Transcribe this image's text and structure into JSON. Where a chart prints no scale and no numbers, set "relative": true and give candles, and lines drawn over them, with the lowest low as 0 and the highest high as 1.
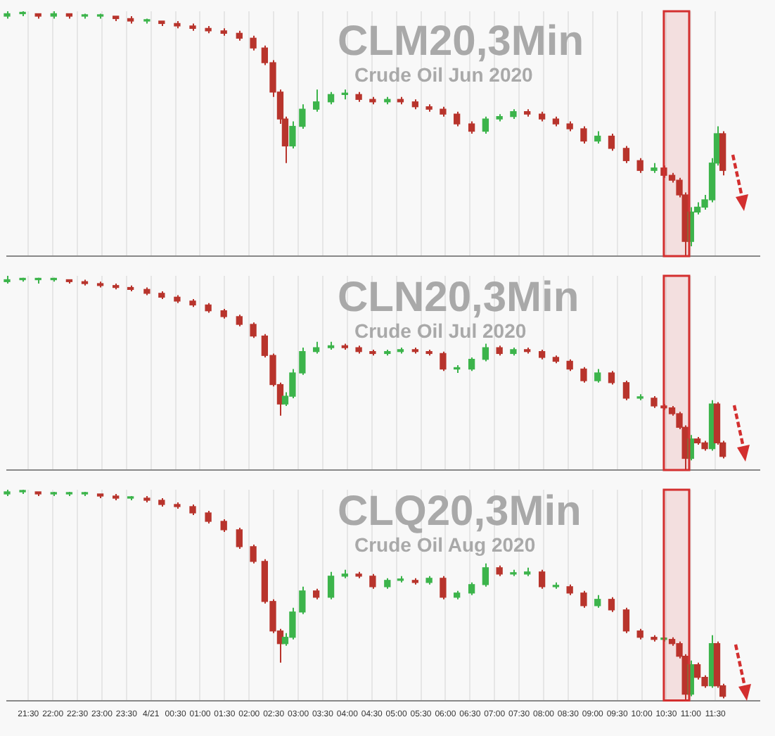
{
  "chart_data": [
    {
      "type": "candlestick",
      "title": "CLM20,3Min",
      "subtitle": "Crude Oil Jun 2020",
      "relative": true,
      "grid": "x",
      "tick_labels": false,
      "xlim": [
        "2020-04-20T21:04",
        "2020-04-21T12:24"
      ],
      "xticks": [
        {
          "value": "2020-04-20T21:30",
          "label": null
        },
        {
          "value": "2020-04-20T22:00",
          "label": null
        },
        {
          "value": "2020-04-20T22:30",
          "label": null
        },
        {
          "value": "2020-04-20T23:00",
          "label": null
        },
        {
          "value": "2020-04-20T23:30",
          "label": null
        },
        {
          "value": "2020-04-21T00:00",
          "label": null
        },
        {
          "value": "2020-04-21T00:30",
          "label": null
        },
        {
          "value": "2020-04-21T01:00",
          "label": null
        },
        {
          "value": "2020-04-21T01:30",
          "label": null
        },
        {
          "value": "2020-04-21T02:00",
          "label": null
        },
        {
          "value": "2020-04-21T02:30",
          "label": null
        },
        {
          "value": "2020-04-21T03:00",
          "label": null
        },
        {
          "value": "2020-04-21T03:30",
          "label": null
        },
        {
          "value": "2020-04-21T04:00",
          "label": null
        },
        {
          "value": "2020-04-21T04:30",
          "label": null
        },
        {
          "value": "2020-04-21T05:00",
          "label": null
        },
        {
          "value": "2020-04-21T05:30",
          "label": null
        },
        {
          "value": "2020-04-21T06:00",
          "label": null
        },
        {
          "value": "2020-04-21T06:30",
          "label": null
        },
        {
          "value": "2020-04-21T07:00",
          "label": null
        },
        {
          "value": "2020-04-21T07:30",
          "label": null
        },
        {
          "value": "2020-04-21T08:00",
          "label": null
        },
        {
          "value": "2020-04-21T08:30",
          "label": null
        },
        {
          "value": "2020-04-21T09:00",
          "label": null
        },
        {
          "value": "2020-04-21T09:30",
          "label": null
        },
        {
          "value": "2020-04-21T10:00",
          "label": null
        },
        {
          "value": "2020-04-21T10:30",
          "label": null
        },
        {
          "value": "2020-04-21T11:00",
          "label": null
        },
        {
          "value": "2020-04-21T11:30",
          "label": null
        }
      ],
      "bands": [
        {
          "axis": "x",
          "from": "2020-04-21T10:27",
          "to": "2020-04-21T10:58",
          "color": "#d32f2f"
        }
      ],
      "x": [
        "2020-04-20T21:04",
        "2020-04-20T21:23",
        "2020-04-20T21:42",
        "2020-04-20T22:01",
        "2020-04-20T22:20",
        "2020-04-20T22:39",
        "2020-04-20T22:58",
        "2020-04-20T23:17",
        "2020-04-20T23:35",
        "2020-04-20T23:55",
        "2020-04-21T00:13",
        "2020-04-21T00:32",
        "2020-04-21T00:51",
        "2020-04-21T01:10",
        "2020-04-21T01:29",
        "2020-04-21T01:48",
        "2020-04-21T02:05",
        "2020-04-21T02:19",
        "2020-04-21T02:29",
        "2020-04-21T02:38",
        "2020-04-21T02:44",
        "2020-04-21T02:53",
        "2020-04-21T03:05",
        "2020-04-21T03:22",
        "2020-04-21T03:40",
        "2020-04-21T03:57",
        "2020-04-21T04:14",
        "2020-04-21T04:31",
        "2020-04-21T04:49",
        "2020-04-21T05:05",
        "2020-04-21T05:23",
        "2020-04-21T05:40",
        "2020-04-21T05:57",
        "2020-04-21T06:14",
        "2020-04-21T06:32",
        "2020-04-21T06:49",
        "2020-04-21T07:06",
        "2020-04-21T07:23",
        "2020-04-21T07:40",
        "2020-04-21T07:58",
        "2020-04-21T08:15",
        "2020-04-21T08:32",
        "2020-04-21T08:49",
        "2020-04-21T09:06",
        "2020-04-21T09:23",
        "2020-04-21T09:41",
        "2020-04-21T09:58",
        "2020-04-21T10:15",
        "2020-04-21T10:27",
        "2020-04-21T10:37",
        "2020-04-21T10:46",
        "2020-04-21T10:53",
        "2020-04-21T11:00",
        "2020-04-21T11:08",
        "2020-04-21T11:17",
        "2020-04-21T11:26",
        "2020-04-21T11:32",
        "2020-04-21T11:39"
      ],
      "ohlc": [
        [
          0.98,
          1.0,
          0.97,
          0.99
        ],
        [
          0.99,
          1.0,
          0.98,
          0.99
        ],
        [
          0.99,
          0.99,
          0.97,
          0.98
        ],
        [
          0.98,
          1.0,
          0.97,
          0.99
        ],
        [
          0.99,
          0.99,
          0.97,
          0.98
        ],
        [
          0.98,
          0.99,
          0.97,
          0.98
        ],
        [
          0.98,
          0.99,
          0.97,
          0.98
        ],
        [
          0.98,
          0.98,
          0.96,
          0.97
        ],
        [
          0.97,
          0.98,
          0.95,
          0.96
        ],
        [
          0.96,
          0.97,
          0.95,
          0.96
        ],
        [
          0.96,
          0.96,
          0.94,
          0.95
        ],
        [
          0.95,
          0.96,
          0.93,
          0.94
        ],
        [
          0.94,
          0.95,
          0.92,
          0.93
        ],
        [
          0.93,
          0.94,
          0.91,
          0.92
        ],
        [
          0.92,
          0.93,
          0.9,
          0.91
        ],
        [
          0.91,
          0.92,
          0.88,
          0.89
        ],
        [
          0.89,
          0.9,
          0.84,
          0.85
        ],
        [
          0.85,
          0.86,
          0.78,
          0.79
        ],
        [
          0.79,
          0.8,
          0.65,
          0.67
        ],
        [
          0.67,
          0.68,
          0.54,
          0.56
        ],
        [
          0.56,
          0.57,
          0.38,
          0.45
        ],
        [
          0.45,
          0.55,
          0.44,
          0.53
        ],
        [
          0.53,
          0.62,
          0.52,
          0.6
        ],
        [
          0.6,
          0.68,
          0.59,
          0.63
        ],
        [
          0.63,
          0.67,
          0.62,
          0.66
        ],
        [
          0.66,
          0.68,
          0.64,
          0.66
        ],
        [
          0.66,
          0.67,
          0.63,
          0.64
        ],
        [
          0.64,
          0.65,
          0.62,
          0.63
        ],
        [
          0.63,
          0.65,
          0.62,
          0.64
        ],
        [
          0.64,
          0.65,
          0.62,
          0.63
        ],
        [
          0.63,
          0.64,
          0.6,
          0.61
        ],
        [
          0.61,
          0.62,
          0.59,
          0.6
        ],
        [
          0.6,
          0.61,
          0.57,
          0.58
        ],
        [
          0.58,
          0.59,
          0.53,
          0.54
        ],
        [
          0.54,
          0.55,
          0.5,
          0.51
        ],
        [
          0.51,
          0.57,
          0.5,
          0.56
        ],
        [
          0.56,
          0.58,
          0.55,
          0.57
        ],
        [
          0.57,
          0.6,
          0.56,
          0.59
        ],
        [
          0.59,
          0.6,
          0.57,
          0.58
        ],
        [
          0.58,
          0.59,
          0.55,
          0.56
        ],
        [
          0.56,
          0.57,
          0.53,
          0.54
        ],
        [
          0.54,
          0.55,
          0.51,
          0.52
        ],
        [
          0.52,
          0.53,
          0.46,
          0.47
        ],
        [
          0.47,
          0.51,
          0.46,
          0.49
        ],
        [
          0.49,
          0.5,
          0.43,
          0.44
        ],
        [
          0.44,
          0.45,
          0.38,
          0.39
        ],
        [
          0.39,
          0.4,
          0.34,
          0.35
        ],
        [
          0.35,
          0.38,
          0.34,
          0.36
        ],
        [
          0.36,
          0.37,
          0.32,
          0.33
        ],
        [
          0.33,
          0.34,
          0.3,
          0.31
        ],
        [
          0.31,
          0.32,
          0.24,
          0.25
        ],
        [
          0.25,
          0.26,
          0.0,
          0.06
        ],
        [
          0.06,
          0.2,
          0.04,
          0.18
        ],
        [
          0.18,
          0.22,
          0.17,
          0.2
        ],
        [
          0.2,
          0.25,
          0.19,
          0.23
        ],
        [
          0.23,
          0.4,
          0.22,
          0.38
        ],
        [
          0.38,
          0.53,
          0.37,
          0.5
        ],
        [
          0.5,
          0.51,
          0.33,
          0.35
        ]
      ]
    },
    {
      "type": "candlestick",
      "title": "CLN20,3Min",
      "subtitle": "Crude Oil Jul 2020",
      "relative": true,
      "grid": "x",
      "tick_labels": false,
      "xlim": [
        "2020-04-20T21:04",
        "2020-04-21T12:24"
      ],
      "xticks": [
        {
          "value": "2020-04-20T21:30",
          "label": null
        },
        {
          "value": "2020-04-20T22:00",
          "label": null
        },
        {
          "value": "2020-04-20T22:30",
          "label": null
        },
        {
          "value": "2020-04-20T23:00",
          "label": null
        },
        {
          "value": "2020-04-20T23:30",
          "label": null
        },
        {
          "value": "2020-04-21T00:00",
          "label": null
        },
        {
          "value": "2020-04-21T00:30",
          "label": null
        },
        {
          "value": "2020-04-21T01:00",
          "label": null
        },
        {
          "value": "2020-04-21T01:30",
          "label": null
        },
        {
          "value": "2020-04-21T02:00",
          "label": null
        },
        {
          "value": "2020-04-21T02:30",
          "label": null
        },
        {
          "value": "2020-04-21T03:00",
          "label": null
        },
        {
          "value": "2020-04-21T03:30",
          "label": null
        },
        {
          "value": "2020-04-21T04:00",
          "label": null
        },
        {
          "value": "2020-04-21T04:30",
          "label": null
        },
        {
          "value": "2020-04-21T05:00",
          "label": null
        },
        {
          "value": "2020-04-21T05:30",
          "label": null
        },
        {
          "value": "2020-04-21T06:00",
          "label": null
        },
        {
          "value": "2020-04-21T06:30",
          "label": null
        },
        {
          "value": "2020-04-21T07:00",
          "label": null
        },
        {
          "value": "2020-04-21T07:30",
          "label": null
        },
        {
          "value": "2020-04-21T08:00",
          "label": null
        },
        {
          "value": "2020-04-21T08:30",
          "label": null
        },
        {
          "value": "2020-04-21T09:00",
          "label": null
        },
        {
          "value": "2020-04-21T09:30",
          "label": null
        },
        {
          "value": "2020-04-21T10:00",
          "label": null
        },
        {
          "value": "2020-04-21T10:30",
          "label": null
        },
        {
          "value": "2020-04-21T11:00",
          "label": null
        },
        {
          "value": "2020-04-21T11:30",
          "label": null
        }
      ],
      "bands": [
        {
          "axis": "x",
          "from": "2020-04-21T10:27",
          "to": "2020-04-21T10:58",
          "color": "#d32f2f"
        }
      ],
      "x": [
        "2020-04-20T21:04",
        "2020-04-20T21:23",
        "2020-04-20T21:42",
        "2020-04-20T22:01",
        "2020-04-20T22:20",
        "2020-04-20T22:39",
        "2020-04-20T22:58",
        "2020-04-20T23:17",
        "2020-04-20T23:35",
        "2020-04-20T23:55",
        "2020-04-21T00:13",
        "2020-04-21T00:32",
        "2020-04-21T00:51",
        "2020-04-21T01:10",
        "2020-04-21T01:29",
        "2020-04-21T01:48",
        "2020-04-21T02:05",
        "2020-04-21T02:19",
        "2020-04-21T02:29",
        "2020-04-21T02:38",
        "2020-04-21T02:44",
        "2020-04-21T02:53",
        "2020-04-21T03:05",
        "2020-04-21T03:22",
        "2020-04-21T03:40",
        "2020-04-21T03:57",
        "2020-04-21T04:14",
        "2020-04-21T04:31",
        "2020-04-21T04:49",
        "2020-04-21T05:05",
        "2020-04-21T05:23",
        "2020-04-21T05:40",
        "2020-04-21T05:57",
        "2020-04-21T06:14",
        "2020-04-21T06:32",
        "2020-04-21T06:49",
        "2020-04-21T07:06",
        "2020-04-21T07:23",
        "2020-04-21T07:40",
        "2020-04-21T07:58",
        "2020-04-21T08:15",
        "2020-04-21T08:32",
        "2020-04-21T08:49",
        "2020-04-21T09:06",
        "2020-04-21T09:23",
        "2020-04-21T09:41",
        "2020-04-21T09:58",
        "2020-04-21T10:15",
        "2020-04-21T10:27",
        "2020-04-21T10:37",
        "2020-04-21T10:46",
        "2020-04-21T10:53",
        "2020-04-21T11:00",
        "2020-04-21T11:08",
        "2020-04-21T11:17",
        "2020-04-21T11:26",
        "2020-04-21T11:32",
        "2020-04-21T11:39"
      ],
      "ohlc": [
        [
          0.97,
          1.0,
          0.96,
          0.98
        ],
        [
          0.98,
          0.99,
          0.97,
          0.98
        ],
        [
          0.98,
          0.99,
          0.96,
          0.98
        ],
        [
          0.98,
          0.99,
          0.97,
          0.98
        ],
        [
          0.98,
          0.98,
          0.96,
          0.97
        ],
        [
          0.97,
          0.98,
          0.95,
          0.96
        ],
        [
          0.96,
          0.97,
          0.94,
          0.95
        ],
        [
          0.95,
          0.96,
          0.93,
          0.94
        ],
        [
          0.94,
          0.95,
          0.92,
          0.93
        ],
        [
          0.93,
          0.94,
          0.9,
          0.91
        ],
        [
          0.91,
          0.92,
          0.88,
          0.89
        ],
        [
          0.89,
          0.9,
          0.86,
          0.87
        ],
        [
          0.87,
          0.88,
          0.84,
          0.85
        ],
        [
          0.85,
          0.86,
          0.81,
          0.82
        ],
        [
          0.82,
          0.83,
          0.78,
          0.79
        ],
        [
          0.79,
          0.8,
          0.74,
          0.75
        ],
        [
          0.75,
          0.76,
          0.68,
          0.69
        ],
        [
          0.69,
          0.7,
          0.58,
          0.59
        ],
        [
          0.59,
          0.6,
          0.43,
          0.44
        ],
        [
          0.44,
          0.45,
          0.28,
          0.34
        ],
        [
          0.34,
          0.4,
          0.33,
          0.38
        ],
        [
          0.38,
          0.52,
          0.37,
          0.5
        ],
        [
          0.5,
          0.63,
          0.49,
          0.61
        ],
        [
          0.61,
          0.66,
          0.6,
          0.63
        ],
        [
          0.63,
          0.66,
          0.62,
          0.64
        ],
        [
          0.64,
          0.65,
          0.62,
          0.63
        ],
        [
          0.63,
          0.64,
          0.6,
          0.61
        ],
        [
          0.61,
          0.62,
          0.59,
          0.6
        ],
        [
          0.6,
          0.62,
          0.59,
          0.61
        ],
        [
          0.61,
          0.63,
          0.6,
          0.62
        ],
        [
          0.62,
          0.63,
          0.6,
          0.61
        ],
        [
          0.61,
          0.62,
          0.59,
          0.6
        ],
        [
          0.6,
          0.61,
          0.51,
          0.52
        ],
        [
          0.52,
          0.54,
          0.5,
          0.52
        ],
        [
          0.52,
          0.58,
          0.51,
          0.57
        ],
        [
          0.57,
          0.65,
          0.56,
          0.63
        ],
        [
          0.63,
          0.64,
          0.59,
          0.6
        ],
        [
          0.6,
          0.63,
          0.59,
          0.62
        ],
        [
          0.62,
          0.63,
          0.6,
          0.61
        ],
        [
          0.61,
          0.62,
          0.57,
          0.58
        ],
        [
          0.58,
          0.59,
          0.55,
          0.56
        ],
        [
          0.56,
          0.57,
          0.51,
          0.52
        ],
        [
          0.52,
          0.53,
          0.45,
          0.46
        ],
        [
          0.46,
          0.52,
          0.45,
          0.5
        ],
        [
          0.5,
          0.51,
          0.44,
          0.45
        ],
        [
          0.45,
          0.46,
          0.36,
          0.37
        ],
        [
          0.37,
          0.39,
          0.36,
          0.37
        ],
        [
          0.37,
          0.38,
          0.32,
          0.33
        ],
        [
          0.33,
          0.34,
          0.31,
          0.32
        ],
        [
          0.32,
          0.33,
          0.28,
          0.29
        ],
        [
          0.29,
          0.3,
          0.21,
          0.22
        ],
        [
          0.22,
          0.23,
          0.0,
          0.06
        ],
        [
          0.06,
          0.18,
          0.05,
          0.16
        ],
        [
          0.16,
          0.17,
          0.13,
          0.14
        ],
        [
          0.14,
          0.15,
          0.1,
          0.11
        ],
        [
          0.11,
          0.36,
          0.1,
          0.34
        ],
        [
          0.34,
          0.35,
          0.13,
          0.14
        ],
        [
          0.14,
          0.15,
          0.06,
          0.07
        ]
      ]
    },
    {
      "type": "candlestick",
      "title": "CLQ20,3Min",
      "subtitle": "Crude Oil Aug 2020",
      "relative": true,
      "grid": "x",
      "tick_labels": "x",
      "xlim": [
        "2020-04-20T21:04",
        "2020-04-21T12:24"
      ],
      "xticks": [
        {
          "value": "2020-04-20T21:30",
          "label": "21:30"
        },
        {
          "value": "2020-04-20T22:00",
          "label": "22:00"
        },
        {
          "value": "2020-04-20T22:30",
          "label": "22:30"
        },
        {
          "value": "2020-04-20T23:00",
          "label": "23:00"
        },
        {
          "value": "2020-04-20T23:30",
          "label": "23:30"
        },
        {
          "value": "2020-04-21T00:00",
          "label": "4/21"
        },
        {
          "value": "2020-04-21T00:30",
          "label": "00:30"
        },
        {
          "value": "2020-04-21T01:00",
          "label": "01:00"
        },
        {
          "value": "2020-04-21T01:30",
          "label": "01:30"
        },
        {
          "value": "2020-04-21T02:00",
          "label": "02:00"
        },
        {
          "value": "2020-04-21T02:30",
          "label": "02:30"
        },
        {
          "value": "2020-04-21T03:00",
          "label": "03:00"
        },
        {
          "value": "2020-04-21T03:30",
          "label": "03:30"
        },
        {
          "value": "2020-04-21T04:00",
          "label": "04:00"
        },
        {
          "value": "2020-04-21T04:30",
          "label": "04:30"
        },
        {
          "value": "2020-04-21T05:00",
          "label": "05:00"
        },
        {
          "value": "2020-04-21T05:30",
          "label": "05:30"
        },
        {
          "value": "2020-04-21T06:00",
          "label": "06:00"
        },
        {
          "value": "2020-04-21T06:30",
          "label": "06:30"
        },
        {
          "value": "2020-04-21T07:00",
          "label": "07:00"
        },
        {
          "value": "2020-04-21T07:30",
          "label": "07:30"
        },
        {
          "value": "2020-04-21T08:00",
          "label": "08:00"
        },
        {
          "value": "2020-04-21T08:30",
          "label": "08:30"
        },
        {
          "value": "2020-04-21T09:00",
          "label": "09:00"
        },
        {
          "value": "2020-04-21T09:30",
          "label": "09:30"
        },
        {
          "value": "2020-04-21T10:00",
          "label": "10:00"
        },
        {
          "value": "2020-04-21T10:30",
          "label": "10:30"
        },
        {
          "value": "2020-04-21T11:00",
          "label": "11:00"
        },
        {
          "value": "2020-04-21T11:30",
          "label": "11:30"
        }
      ],
      "bands": [
        {
          "axis": "x",
          "from": "2020-04-21T10:27",
          "to": "2020-04-21T10:58",
          "color": "#d32f2f"
        }
      ],
      "x": [
        "2020-04-20T21:04",
        "2020-04-20T21:23",
        "2020-04-20T21:42",
        "2020-04-20T22:01",
        "2020-04-20T22:20",
        "2020-04-20T22:39",
        "2020-04-20T22:58",
        "2020-04-20T23:17",
        "2020-04-20T23:35",
        "2020-04-20T23:55",
        "2020-04-21T00:13",
        "2020-04-21T00:32",
        "2020-04-21T00:51",
        "2020-04-21T01:10",
        "2020-04-21T01:29",
        "2020-04-21T01:48",
        "2020-04-21T02:05",
        "2020-04-21T02:19",
        "2020-04-21T02:29",
        "2020-04-21T02:38",
        "2020-04-21T02:44",
        "2020-04-21T02:53",
        "2020-04-21T03:05",
        "2020-04-21T03:22",
        "2020-04-21T03:40",
        "2020-04-21T03:57",
        "2020-04-21T04:14",
        "2020-04-21T04:31",
        "2020-04-21T04:49",
        "2020-04-21T05:05",
        "2020-04-21T05:23",
        "2020-04-21T05:40",
        "2020-04-21T05:57",
        "2020-04-21T06:14",
        "2020-04-21T06:32",
        "2020-04-21T06:49",
        "2020-04-21T07:06",
        "2020-04-21T07:23",
        "2020-04-21T07:40",
        "2020-04-21T07:58",
        "2020-04-21T08:15",
        "2020-04-21T08:32",
        "2020-04-21T08:49",
        "2020-04-21T09:06",
        "2020-04-21T09:23",
        "2020-04-21T09:41",
        "2020-04-21T09:58",
        "2020-04-21T10:15",
        "2020-04-21T10:27",
        "2020-04-21T10:37",
        "2020-04-21T10:46",
        "2020-04-21T10:53",
        "2020-04-21T11:00",
        "2020-04-21T11:08",
        "2020-04-21T11:17",
        "2020-04-21T11:26",
        "2020-04-21T11:32",
        "2020-04-21T11:39"
      ],
      "ohlc": [
        [
          0.98,
          1.0,
          0.97,
          0.99
        ],
        [
          0.99,
          1.0,
          0.98,
          0.99
        ],
        [
          0.99,
          0.99,
          0.97,
          0.98
        ],
        [
          0.98,
          0.99,
          0.97,
          0.98
        ],
        [
          0.98,
          0.99,
          0.97,
          0.98
        ],
        [
          0.98,
          0.99,
          0.97,
          0.98
        ],
        [
          0.98,
          0.98,
          0.96,
          0.97
        ],
        [
          0.97,
          0.98,
          0.95,
          0.96
        ],
        [
          0.96,
          0.97,
          0.95,
          0.96
        ],
        [
          0.96,
          0.97,
          0.94,
          0.95
        ],
        [
          0.95,
          0.96,
          0.92,
          0.93
        ],
        [
          0.93,
          0.94,
          0.91,
          0.92
        ],
        [
          0.92,
          0.93,
          0.88,
          0.89
        ],
        [
          0.89,
          0.9,
          0.84,
          0.85
        ],
        [
          0.85,
          0.86,
          0.8,
          0.81
        ],
        [
          0.81,
          0.82,
          0.72,
          0.73
        ],
        [
          0.73,
          0.74,
          0.65,
          0.66
        ],
        [
          0.66,
          0.67,
          0.46,
          0.47
        ],
        [
          0.47,
          0.48,
          0.32,
          0.33
        ],
        [
          0.33,
          0.34,
          0.18,
          0.27
        ],
        [
          0.27,
          0.32,
          0.26,
          0.3
        ],
        [
          0.3,
          0.44,
          0.29,
          0.42
        ],
        [
          0.42,
          0.54,
          0.41,
          0.52
        ],
        [
          0.52,
          0.53,
          0.48,
          0.49
        ],
        [
          0.49,
          0.61,
          0.48,
          0.59
        ],
        [
          0.59,
          0.62,
          0.58,
          0.6
        ],
        [
          0.6,
          0.61,
          0.58,
          0.59
        ],
        [
          0.59,
          0.6,
          0.53,
          0.54
        ],
        [
          0.54,
          0.58,
          0.53,
          0.57
        ],
        [
          0.57,
          0.59,
          0.56,
          0.57
        ],
        [
          0.57,
          0.58,
          0.55,
          0.56
        ],
        [
          0.56,
          0.59,
          0.55,
          0.58
        ],
        [
          0.58,
          0.59,
          0.48,
          0.49
        ],
        [
          0.49,
          0.52,
          0.48,
          0.51
        ],
        [
          0.51,
          0.56,
          0.5,
          0.55
        ],
        [
          0.55,
          0.65,
          0.54,
          0.63
        ],
        [
          0.63,
          0.64,
          0.59,
          0.6
        ],
        [
          0.6,
          0.62,
          0.59,
          0.6
        ],
        [
          0.6,
          0.63,
          0.59,
          0.61
        ],
        [
          0.61,
          0.62,
          0.53,
          0.54
        ],
        [
          0.54,
          0.56,
          0.53,
          0.54
        ],
        [
          0.54,
          0.55,
          0.5,
          0.51
        ],
        [
          0.51,
          0.52,
          0.44,
          0.45
        ],
        [
          0.45,
          0.5,
          0.44,
          0.48
        ],
        [
          0.48,
          0.49,
          0.42,
          0.43
        ],
        [
          0.43,
          0.44,
          0.32,
          0.33
        ],
        [
          0.33,
          0.34,
          0.29,
          0.3
        ],
        [
          0.3,
          0.31,
          0.28,
          0.29
        ],
        [
          0.29,
          0.3,
          0.28,
          0.29
        ],
        [
          0.29,
          0.3,
          0.26,
          0.27
        ],
        [
          0.27,
          0.28,
          0.2,
          0.21
        ],
        [
          0.21,
          0.22,
          0.0,
          0.03
        ],
        [
          0.03,
          0.19,
          0.02,
          0.17
        ],
        [
          0.17,
          0.18,
          0.1,
          0.11
        ],
        [
          0.11,
          0.12,
          0.06,
          0.07
        ],
        [
          0.07,
          0.31,
          0.06,
          0.27
        ],
        [
          0.27,
          0.28,
          0.06,
          0.07
        ],
        [
          0.07,
          0.08,
          0.01,
          0.02
        ]
      ]
    }
  ]
}
